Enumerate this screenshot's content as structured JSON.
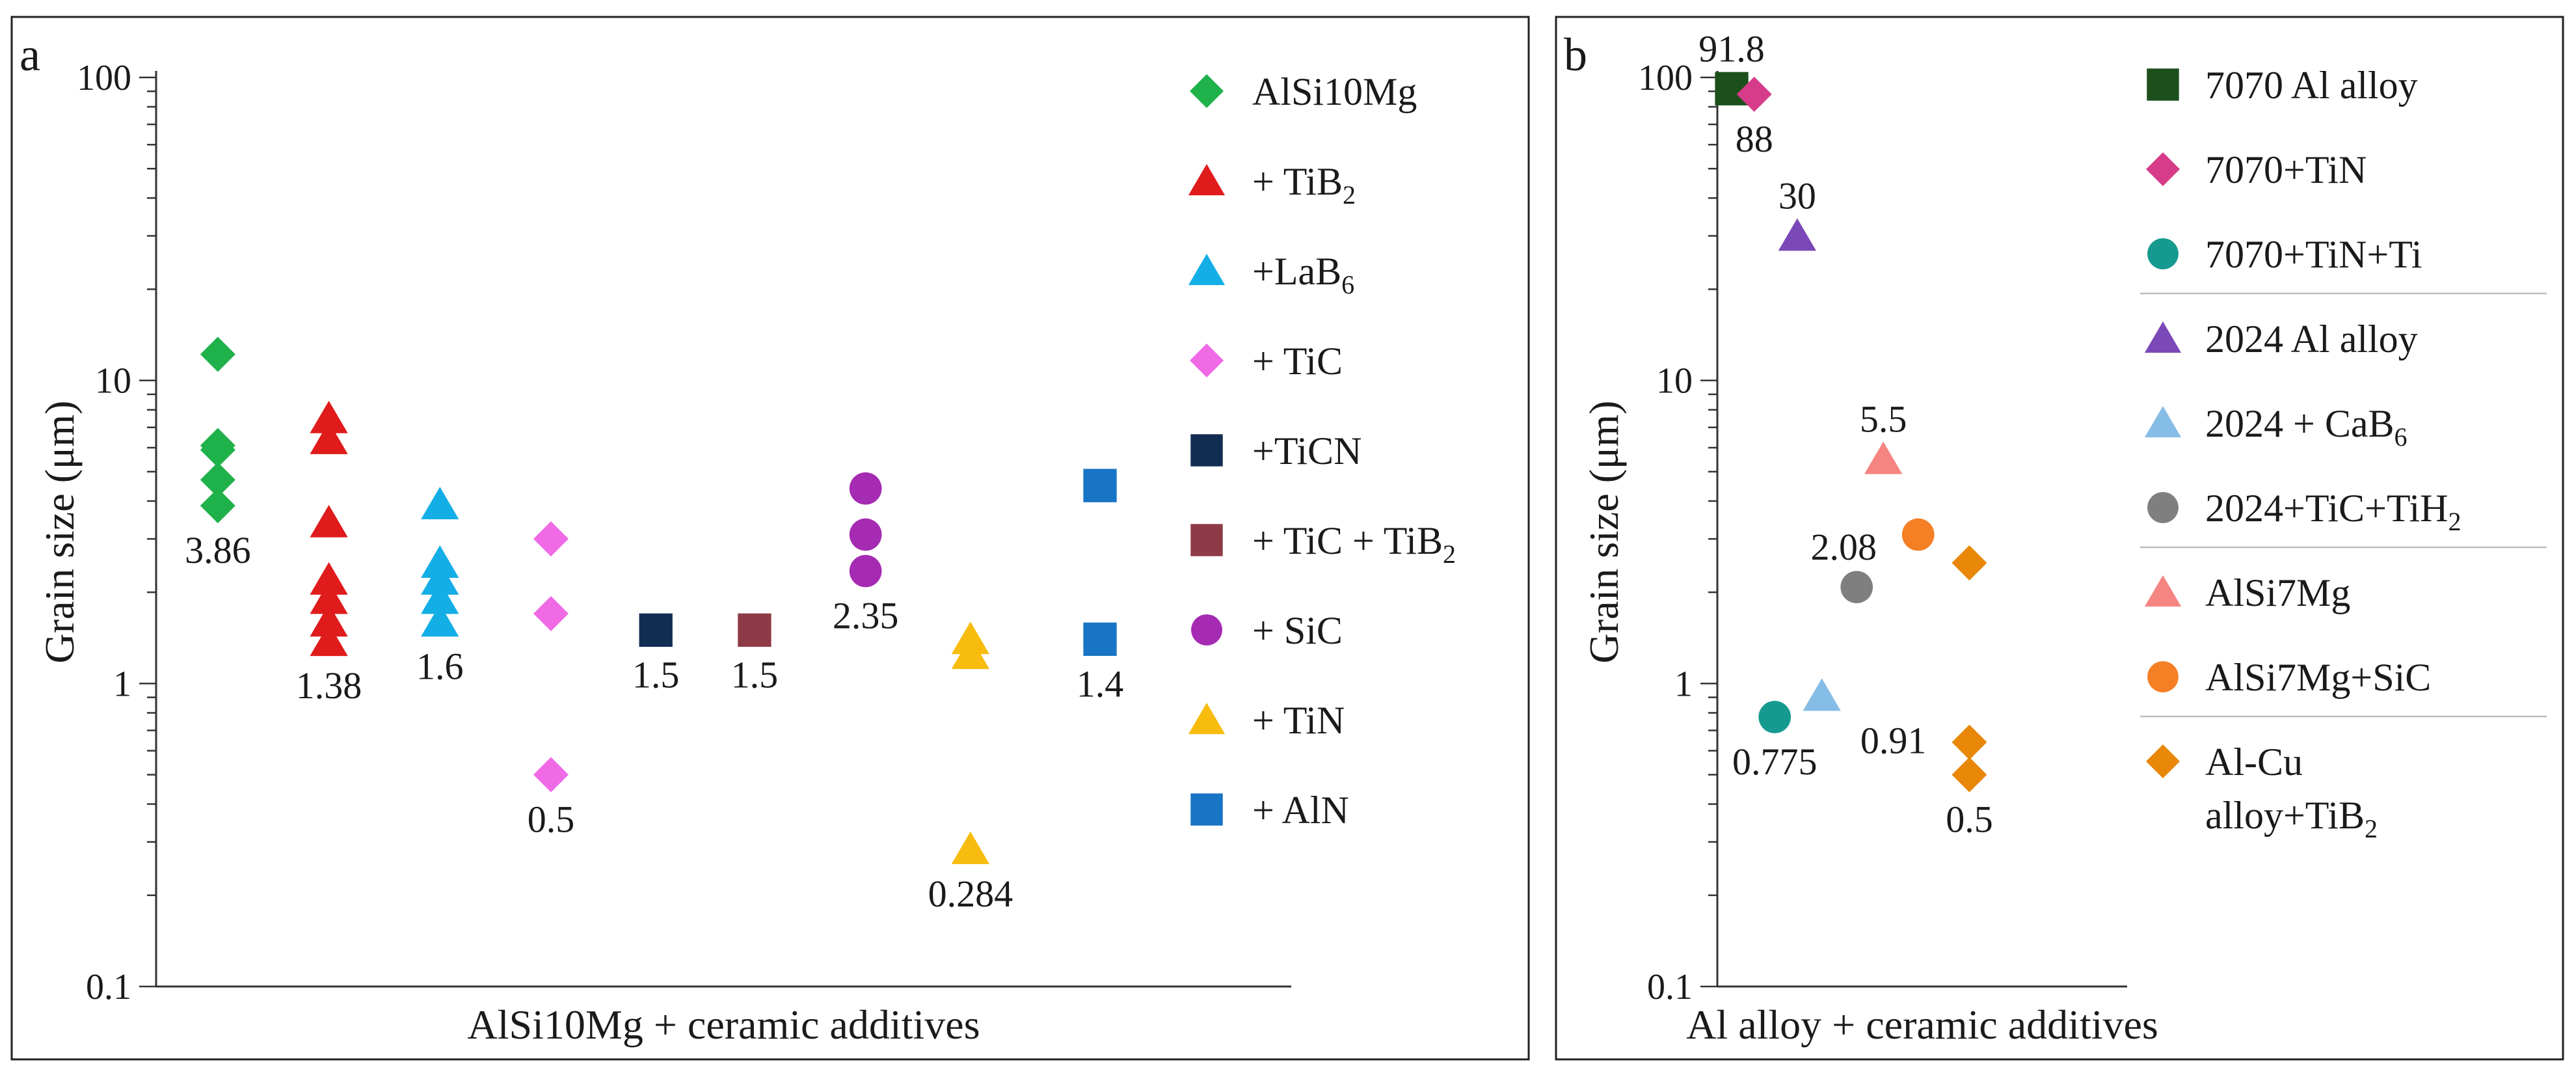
{
  "chart_data": [
    {
      "type": "scatter",
      "panel_label": "a",
      "xlabel": "AlSi10Mg + ceramic additives",
      "ylabel": "Grain size (μm)",
      "yscale": "log",
      "ylim": [
        0.1,
        100
      ],
      "yticks": [
        "0.1",
        "1",
        "10",
        "100"
      ],
      "xlim": [
        0.5,
        9.7
      ],
      "legend_position": "right",
      "series": [
        {
          "name": "AlSi10Mg",
          "marker": "diamond",
          "color": "#1fb14a",
          "points": [
            {
              "x": 1,
              "y": 12.2
            },
            {
              "x": 1,
              "y": 6.1
            },
            {
              "x": 1,
              "y": 5.9
            },
            {
              "x": 1,
              "y": 4.7
            },
            {
              "x": 1,
              "y": 3.86
            }
          ]
        },
        {
          "name": "+ TiB",
          "name_sub": "2",
          "marker": "triangle",
          "color": "#e01b1b",
          "points": [
            {
              "x": 1.9,
              "y": 7.5
            },
            {
              "x": 1.9,
              "y": 6.4
            },
            {
              "x": 1.9,
              "y": 3.4
            },
            {
              "x": 1.9,
              "y": 2.2
            },
            {
              "x": 1.9,
              "y": 1.9
            },
            {
              "x": 1.9,
              "y": 1.6
            },
            {
              "x": 1.9,
              "y": 1.38
            }
          ]
        },
        {
          "name": "+LaB",
          "name_sub": "6",
          "marker": "triangle",
          "color": "#14aee6",
          "points": [
            {
              "x": 2.8,
              "y": 3.9
            },
            {
              "x": 2.8,
              "y": 2.5
            },
            {
              "x": 2.8,
              "y": 2.2
            },
            {
              "x": 2.8,
              "y": 1.9
            },
            {
              "x": 2.8,
              "y": 1.6
            }
          ]
        },
        {
          "name": "+ TiC",
          "marker": "diamond",
          "color": "#f06ae6",
          "points": [
            {
              "x": 3.7,
              "y": 3.0
            },
            {
              "x": 3.7,
              "y": 1.7
            },
            {
              "x": 3.7,
              "y": 0.5
            }
          ]
        },
        {
          "name": "+TiCN",
          "marker": "square",
          "color": "#122d52",
          "points": [
            {
              "x": 4.55,
              "y": 1.5
            }
          ]
        },
        {
          "name": "+ TiC + TiB",
          "name_sub": "2",
          "marker": "square",
          "color": "#8e3b47",
          "points": [
            {
              "x": 5.35,
              "y": 1.5
            }
          ]
        },
        {
          "name": "+ SiC",
          "marker": "circle",
          "color": "#a52bb2",
          "points": [
            {
              "x": 6.25,
              "y": 4.4
            },
            {
              "x": 6.25,
              "y": 3.1
            },
            {
              "x": 6.25,
              "y": 2.35
            }
          ]
        },
        {
          "name": "+ TiN",
          "marker": "triangle",
          "color": "#f7bc0e",
          "points": [
            {
              "x": 7.1,
              "y": 1.4
            },
            {
              "x": 7.1,
              "y": 1.25
            },
            {
              "x": 7.1,
              "y": 0.284
            }
          ]
        },
        {
          "name": "+ AlN",
          "marker": "square",
          "color": "#1874c4",
          "points": [
            {
              "x": 8.15,
              "y": 4.5
            },
            {
              "x": 8.15,
              "y": 1.4
            }
          ]
        }
      ],
      "annotations": [
        {
          "text": "3.86",
          "x": 1,
          "y": 3.86,
          "pos": "below"
        },
        {
          "text": "1.38",
          "x": 1.9,
          "y": 1.38,
          "pos": "below"
        },
        {
          "text": "1.6",
          "x": 2.8,
          "y": 1.6,
          "pos": "below"
        },
        {
          "text": "0.5",
          "x": 3.7,
          "y": 0.5,
          "pos": "below"
        },
        {
          "text": "1.5",
          "x": 4.55,
          "y": 1.5,
          "pos": "below"
        },
        {
          "text": "1.5",
          "x": 5.35,
          "y": 1.5,
          "pos": "below"
        },
        {
          "text": "2.35",
          "x": 6.25,
          "y": 2.35,
          "pos": "below"
        },
        {
          "text": "0.284",
          "x": 7.1,
          "y": 0.284,
          "pos": "below"
        },
        {
          "text": "1.4",
          "x": 8.15,
          "y": 1.4,
          "pos": "below"
        }
      ]
    },
    {
      "type": "scatter",
      "panel_label": "b",
      "xlabel": "Al alloy + ceramic additives",
      "ylabel": "Grain size (μm)",
      "yscale": "log",
      "ylim": [
        0.1,
        100
      ],
      "yticks": [
        "0.1",
        "1",
        "10",
        "100"
      ],
      "xlim": [
        0,
        10
      ],
      "legend_position": "right",
      "legend_separators_after": [
        2,
        5,
        7
      ],
      "series": [
        {
          "name": "7070 Al alloy",
          "marker": "square",
          "color": "#1d4f1d",
          "points": [
            {
              "x": 0.35,
              "y": 91.8
            }
          ]
        },
        {
          "name": "7070+TiN",
          "marker": "diamond",
          "color": "#d63c8a",
          "points": [
            {
              "x": 0.9,
              "y": 88
            }
          ]
        },
        {
          "name": "7070+TiN+Ti",
          "marker": "circle",
          "color": "#169a90",
          "points": [
            {
              "x": 1.4,
              "y": 0.775
            }
          ]
        },
        {
          "name": "2024 Al alloy",
          "marker": "triangle",
          "color": "#7b48b8",
          "points": [
            {
              "x": 1.95,
              "y": 30
            }
          ]
        },
        {
          "name": "2024 + CaB",
          "name_sub": "6",
          "marker": "triangle",
          "color": "#86bde6",
          "points": [
            {
              "x": 2.55,
              "y": 0.91
            }
          ]
        },
        {
          "name": "2024+TiC+TiH",
          "name_sub": "2",
          "marker": "circle",
          "color": "#7f7f7f",
          "points": [
            {
              "x": 3.4,
              "y": 2.08
            }
          ]
        },
        {
          "name": "AlSi7Mg",
          "marker": "triangle",
          "color": "#f48582",
          "points": [
            {
              "x": 4.05,
              "y": 5.5
            }
          ]
        },
        {
          "name": "AlSi7Mg+SiC",
          "marker": "circle",
          "color": "#f47f24",
          "points": [
            {
              "x": 4.9,
              "y": 3.1
            }
          ]
        },
        {
          "name": "Al-Cu",
          "name_line2": "alloy+TiB",
          "name_sub": "2",
          "marker": "diamond",
          "color": "#e88708",
          "points": [
            {
              "x": 6.15,
              "y": 2.5
            },
            {
              "x": 6.15,
              "y": 0.64
            },
            {
              "x": 6.15,
              "y": 0.5
            }
          ]
        }
      ],
      "annotations": [
        {
          "text": "91.8",
          "x": 0.35,
          "y": 91.8,
          "pos": "above"
        },
        {
          "text": "88",
          "x": 0.9,
          "y": 88,
          "pos": "below"
        },
        {
          "text": "30",
          "x": 1.95,
          "y": 30,
          "pos": "above"
        },
        {
          "text": "5.5",
          "x": 4.05,
          "y": 5.5,
          "pos": "above"
        },
        {
          "text": "2.08",
          "x": 3.4,
          "y": 2.08,
          "pos": "left-above"
        },
        {
          "text": "0.775",
          "x": 1.4,
          "y": 0.775,
          "pos": "below"
        },
        {
          "text": "0.91",
          "x": 2.55,
          "y": 0.91,
          "pos": "right-below"
        },
        {
          "text": "0.5",
          "x": 6.15,
          "y": 0.5,
          "pos": "below"
        }
      ]
    }
  ]
}
